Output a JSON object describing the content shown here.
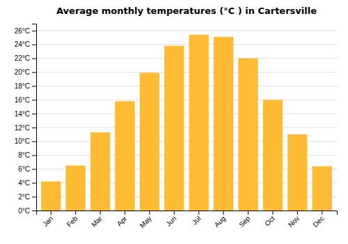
{
  "chart_data": {
    "type": "bar",
    "title": "Average monthly temperatures (°C ) in Cartersville",
    "categories": [
      "Jan",
      "Feb",
      "Mar",
      "Apr",
      "May",
      "Jun",
      "Jul",
      "Aug",
      "Sep",
      "Oct",
      "Nov",
      "Dec"
    ],
    "values": [
      4.2,
      6.5,
      11.3,
      15.8,
      19.9,
      23.8,
      25.4,
      25.1,
      22.0,
      16.0,
      11.0,
      6.4
    ],
    "color": "#FFBB33",
    "ylim": [
      0,
      27
    ],
    "yticks": [
      {
        "value": 0,
        "label": "0°C"
      },
      {
        "value": 2,
        "label": "2°C"
      },
      {
        "value": 4,
        "label": "4°C"
      },
      {
        "value": 6,
        "label": "6°C"
      },
      {
        "value": 8,
        "label": "8°C"
      },
      {
        "value": 10,
        "label": "10°C"
      },
      {
        "value": 12,
        "label": "12°C"
      },
      {
        "value": 14,
        "label": "14°C"
      },
      {
        "value": 16,
        "label": "16°C"
      },
      {
        "value": 18,
        "label": "18°C"
      },
      {
        "value": 20,
        "label": "20°C"
      },
      {
        "value": 22,
        "label": "22°C"
      },
      {
        "value": 24,
        "label": "24°C"
      },
      {
        "value": 26,
        "label": "26°C"
      }
    ],
    "grid": true
  }
}
